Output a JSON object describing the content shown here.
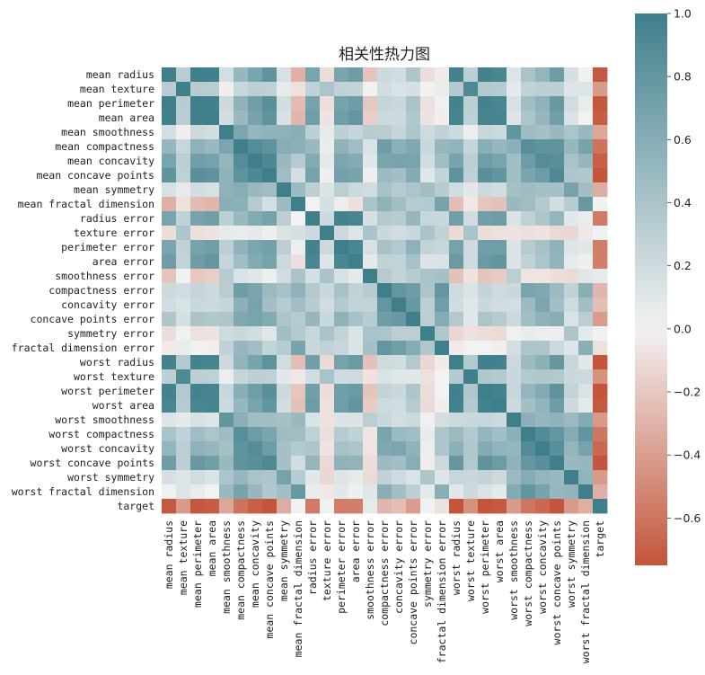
{
  "chart_data": {
    "type": "heatmap",
    "title": "相关性热力图",
    "xlabel": "",
    "ylabel": "",
    "colorbar": {
      "range": [
        -0.75,
        1.0
      ],
      "ticks": [
        1.0,
        0.8,
        0.6,
        0.4,
        0.2,
        0.0,
        -0.2,
        -0.4,
        -0.6
      ],
      "tick_labels": [
        "1.0",
        "0.8",
        "0.6",
        "0.4",
        "0.2",
        "0.0",
        "−0.2",
        "−0.4",
        "−0.6"
      ],
      "colormap": "diverging",
      "low_color": "#c4553a",
      "mid_color": "#f2f2f2",
      "high_color": "#3f7f8c"
    },
    "labels": [
      "mean radius",
      "mean texture",
      "mean perimeter",
      "mean area",
      "mean smoothness",
      "mean compactness",
      "mean concavity",
      "mean concave points",
      "mean symmetry",
      "mean fractal dimension",
      "radius error",
      "texture error",
      "perimeter error",
      "area error",
      "smoothness error",
      "compactness error",
      "concavity error",
      "concave points error",
      "symmetry error",
      "fractal dimension error",
      "worst radius",
      "worst texture",
      "worst perimeter",
      "worst area",
      "worst smoothness",
      "worst compactness",
      "worst concavity",
      "worst concave points",
      "worst symmetry",
      "worst fractal dimension",
      "target"
    ],
    "matrix": [
      [
        1.0,
        0.32,
        1.0,
        0.99,
        0.17,
        0.51,
        0.68,
        0.82,
        0.15,
        -0.31,
        0.68,
        -0.1,
        0.67,
        0.74,
        -0.22,
        0.21,
        0.19,
        0.38,
        -0.1,
        -0.04,
        0.97,
        0.3,
        0.97,
        0.94,
        0.12,
        0.41,
        0.53,
        0.74,
        0.16,
        0.01,
        -0.73
      ],
      [
        0.32,
        1.0,
        0.33,
        0.32,
        -0.02,
        0.24,
        0.3,
        0.29,
        0.07,
        -0.08,
        0.28,
        0.39,
        0.28,
        0.26,
        0.01,
        0.19,
        0.14,
        0.16,
        0.01,
        0.05,
        0.35,
        0.91,
        0.36,
        0.34,
        0.08,
        0.28,
        0.3,
        0.3,
        0.11,
        0.12,
        -0.42
      ],
      [
        1.0,
        0.33,
        1.0,
        0.99,
        0.21,
        0.56,
        0.72,
        0.85,
        0.18,
        -0.26,
        0.69,
        -0.09,
        0.69,
        0.74,
        -0.2,
        0.25,
        0.23,
        0.41,
        -0.08,
        -0.01,
        0.97,
        0.3,
        0.97,
        0.94,
        0.15,
        0.46,
        0.56,
        0.77,
        0.19,
        0.05,
        -0.74
      ],
      [
        0.99,
        0.32,
        0.99,
        1.0,
        0.18,
        0.5,
        0.69,
        0.82,
        0.15,
        -0.28,
        0.73,
        -0.07,
        0.73,
        0.8,
        -0.17,
        0.21,
        0.21,
        0.37,
        -0.07,
        -0.02,
        0.96,
        0.29,
        0.96,
        0.96,
        0.12,
        0.39,
        0.51,
        0.72,
        0.14,
        0.0,
        -0.71
      ],
      [
        0.17,
        -0.02,
        0.21,
        0.18,
        1.0,
        0.66,
        0.52,
        0.55,
        0.56,
        0.58,
        0.3,
        0.07,
        0.3,
        0.25,
        0.33,
        0.32,
        0.25,
        0.38,
        0.2,
        0.28,
        0.21,
        0.04,
        0.24,
        0.21,
        0.81,
        0.47,
        0.43,
        0.5,
        0.39,
        0.5,
        -0.36
      ],
      [
        0.51,
        0.24,
        0.56,
        0.5,
        0.66,
        1.0,
        0.88,
        0.83,
        0.6,
        0.57,
        0.5,
        0.05,
        0.55,
        0.46,
        0.14,
        0.74,
        0.57,
        0.64,
        0.23,
        0.51,
        0.54,
        0.25,
        0.59,
        0.51,
        0.57,
        0.87,
        0.82,
        0.82,
        0.51,
        0.69,
        -0.6
      ],
      [
        0.68,
        0.3,
        0.72,
        0.69,
        0.52,
        0.88,
        1.0,
        0.92,
        0.5,
        0.34,
        0.63,
        0.08,
        0.66,
        0.62,
        0.1,
        0.67,
        0.69,
        0.68,
        0.18,
        0.45,
        0.69,
        0.3,
        0.73,
        0.68,
        0.45,
        0.75,
        0.88,
        0.86,
        0.41,
        0.51,
        -0.7
      ],
      [
        0.82,
        0.29,
        0.85,
        0.82,
        0.55,
        0.83,
        0.92,
        1.0,
        0.46,
        0.17,
        0.7,
        0.02,
        0.71,
        0.69,
        0.03,
        0.49,
        0.44,
        0.62,
        0.1,
        0.26,
        0.83,
        0.29,
        0.86,
        0.81,
        0.45,
        0.67,
        0.75,
        0.91,
        0.38,
        0.37,
        -0.78
      ],
      [
        0.15,
        0.07,
        0.18,
        0.15,
        0.56,
        0.6,
        0.5,
        0.46,
        1.0,
        0.48,
        0.3,
        0.13,
        0.31,
        0.22,
        0.19,
        0.42,
        0.34,
        0.39,
        0.45,
        0.33,
        0.19,
        0.09,
        0.22,
        0.18,
        0.43,
        0.47,
        0.43,
        0.43,
        0.7,
        0.44,
        -0.33
      ],
      [
        -0.31,
        -0.08,
        -0.26,
        -0.28,
        0.58,
        0.57,
        0.34,
        0.17,
        0.48,
        1.0,
        0.0,
        0.16,
        0.04,
        -0.09,
        0.4,
        0.56,
        0.45,
        0.34,
        0.35,
        0.69,
        -0.25,
        -0.05,
        -0.21,
        -0.23,
        0.5,
        0.46,
        0.35,
        0.18,
        0.33,
        0.77,
        0.01
      ],
      [
        0.68,
        0.28,
        0.69,
        0.73,
        0.3,
        0.5,
        0.63,
        0.7,
        0.3,
        0.0,
        1.0,
        0.21,
        0.97,
        0.95,
        0.16,
        0.36,
        0.33,
        0.51,
        0.24,
        0.23,
        0.72,
        0.19,
        0.72,
        0.75,
        0.14,
        0.29,
        0.38,
        0.53,
        0.09,
        0.05,
        -0.57
      ],
      [
        -0.1,
        0.39,
        -0.09,
        -0.07,
        0.07,
        0.05,
        0.08,
        0.02,
        0.13,
        0.16,
        0.21,
        1.0,
        0.22,
        0.11,
        0.4,
        0.23,
        0.19,
        0.23,
        0.41,
        0.28,
        -0.11,
        0.41,
        -0.1,
        -0.08,
        -0.07,
        -0.09,
        -0.07,
        -0.12,
        -0.13,
        -0.05,
        0.01
      ],
      [
        0.67,
        0.28,
        0.69,
        0.73,
        0.3,
        0.55,
        0.66,
        0.71,
        0.31,
        0.04,
        0.97,
        0.22,
        1.0,
        0.94,
        0.15,
        0.42,
        0.36,
        0.56,
        0.27,
        0.24,
        0.7,
        0.2,
        0.72,
        0.73,
        0.13,
        0.34,
        0.42,
        0.55,
        0.11,
        0.09,
        -0.56
      ],
      [
        0.74,
        0.26,
        0.74,
        0.8,
        0.25,
        0.46,
        0.62,
        0.69,
        0.22,
        -0.09,
        0.95,
        0.11,
        0.94,
        1.0,
        0.08,
        0.28,
        0.27,
        0.42,
        0.13,
        0.13,
        0.76,
        0.2,
        0.76,
        0.81,
        0.13,
        0.28,
        0.39,
        0.54,
        0.07,
        0.02,
        -0.55
      ],
      [
        -0.22,
        0.01,
        -0.2,
        -0.17,
        0.33,
        0.14,
        0.1,
        0.03,
        0.19,
        0.4,
        0.16,
        0.4,
        0.15,
        0.08,
        1.0,
        0.34,
        0.27,
        0.33,
        0.41,
        0.43,
        -0.23,
        -0.07,
        -0.22,
        -0.18,
        0.31,
        -0.06,
        -0.06,
        -0.1,
        -0.11,
        0.1,
        0.07
      ],
      [
        0.21,
        0.19,
        0.25,
        0.21,
        0.32,
        0.74,
        0.67,
        0.49,
        0.42,
        0.56,
        0.36,
        0.23,
        0.42,
        0.28,
        0.34,
        1.0,
        0.8,
        0.74,
        0.39,
        0.8,
        0.2,
        0.14,
        0.26,
        0.2,
        0.23,
        0.68,
        0.64,
        0.48,
        0.28,
        0.59,
        -0.29
      ],
      [
        0.19,
        0.14,
        0.23,
        0.21,
        0.25,
        0.57,
        0.69,
        0.44,
        0.34,
        0.45,
        0.33,
        0.19,
        0.36,
        0.27,
        0.27,
        0.8,
        1.0,
        0.77,
        0.31,
        0.73,
        0.19,
        0.1,
        0.23,
        0.19,
        0.17,
        0.48,
        0.66,
        0.44,
        0.2,
        0.44,
        -0.25
      ],
      [
        0.38,
        0.16,
        0.41,
        0.37,
        0.38,
        0.64,
        0.68,
        0.62,
        0.39,
        0.34,
        0.51,
        0.23,
        0.56,
        0.42,
        0.33,
        0.74,
        0.77,
        1.0,
        0.31,
        0.61,
        0.36,
        0.09,
        0.39,
        0.34,
        0.22,
        0.45,
        0.55,
        0.6,
        0.14,
        0.31,
        -0.41
      ],
      [
        -0.1,
        0.01,
        -0.08,
        -0.07,
        0.2,
        0.23,
        0.18,
        0.1,
        0.45,
        0.35,
        0.24,
        0.41,
        0.27,
        0.13,
        0.41,
        0.39,
        0.31,
        0.31,
        1.0,
        0.37,
        -0.13,
        -0.08,
        -0.1,
        -0.11,
        -0.01,
        0.06,
        0.04,
        -0.03,
        0.39,
        0.08,
        0.01
      ],
      [
        -0.04,
        0.05,
        -0.01,
        -0.02,
        0.28,
        0.51,
        0.45,
        0.26,
        0.33,
        0.69,
        0.23,
        0.28,
        0.24,
        0.13,
        0.43,
        0.8,
        0.73,
        0.61,
        0.37,
        1.0,
        -0.04,
        -0.0,
        -0.0,
        -0.02,
        0.17,
        0.39,
        0.38,
        0.22,
        0.11,
        0.59,
        -0.08
      ],
      [
        0.97,
        0.35,
        0.97,
        0.96,
        0.21,
        0.54,
        0.69,
        0.83,
        0.19,
        -0.25,
        0.72,
        -0.11,
        0.7,
        0.76,
        -0.23,
        0.2,
        0.19,
        0.36,
        -0.13,
        -0.04,
        1.0,
        0.36,
        0.99,
        0.98,
        0.22,
        0.48,
        0.57,
        0.79,
        0.24,
        0.09,
        -0.78
      ],
      [
        0.3,
        0.91,
        0.3,
        0.29,
        0.04,
        0.25,
        0.3,
        0.29,
        0.09,
        -0.05,
        0.19,
        0.41,
        0.2,
        0.2,
        -0.07,
        0.14,
        0.1,
        0.09,
        -0.08,
        -0.0,
        0.36,
        1.0,
        0.37,
        0.35,
        0.23,
        0.36,
        0.37,
        0.36,
        0.23,
        0.22,
        -0.46
      ],
      [
        0.97,
        0.36,
        0.97,
        0.96,
        0.24,
        0.59,
        0.73,
        0.86,
        0.22,
        -0.21,
        0.72,
        -0.1,
        0.72,
        0.76,
        -0.22,
        0.26,
        0.23,
        0.39,
        -0.1,
        -0.0,
        0.99,
        0.37,
        1.0,
        0.98,
        0.24,
        0.53,
        0.62,
        0.82,
        0.27,
        0.14,
        -0.78
      ],
      [
        0.94,
        0.34,
        0.94,
        0.96,
        0.21,
        0.51,
        0.68,
        0.81,
        0.18,
        -0.23,
        0.75,
        -0.08,
        0.73,
        0.81,
        -0.18,
        0.2,
        0.19,
        0.34,
        -0.11,
        -0.02,
        0.98,
        0.35,
        0.98,
        1.0,
        0.21,
        0.44,
        0.54,
        0.75,
        0.21,
        0.08,
        -0.73
      ],
      [
        0.12,
        0.08,
        0.15,
        0.12,
        0.81,
        0.57,
        0.45,
        0.45,
        0.43,
        0.5,
        0.14,
        -0.07,
        0.13,
        0.13,
        0.31,
        0.23,
        0.17,
        0.22,
        -0.01,
        0.17,
        0.22,
        0.23,
        0.24,
        0.21,
        1.0,
        0.57,
        0.52,
        0.55,
        0.49,
        0.62,
        -0.42
      ],
      [
        0.41,
        0.28,
        0.46,
        0.39,
        0.47,
        0.87,
        0.75,
        0.67,
        0.47,
        0.46,
        0.29,
        -0.09,
        0.34,
        0.28,
        -0.06,
        0.68,
        0.48,
        0.45,
        0.06,
        0.39,
        0.48,
        0.36,
        0.53,
        0.44,
        0.57,
        1.0,
        0.89,
        0.8,
        0.61,
        0.81,
        -0.59
      ],
      [
        0.53,
        0.3,
        0.56,
        0.51,
        0.43,
        0.82,
        0.88,
        0.75,
        0.43,
        0.35,
        0.38,
        -0.07,
        0.42,
        0.39,
        -0.06,
        0.64,
        0.66,
        0.55,
        0.04,
        0.38,
        0.57,
        0.37,
        0.62,
        0.54,
        0.52,
        0.89,
        1.0,
        0.86,
        0.53,
        0.69,
        -0.66
      ],
      [
        0.74,
        0.3,
        0.77,
        0.72,
        0.5,
        0.82,
        0.86,
        0.91,
        0.43,
        0.18,
        0.53,
        -0.12,
        0.55,
        0.54,
        -0.1,
        0.48,
        0.44,
        0.6,
        -0.03,
        0.22,
        0.79,
        0.36,
        0.82,
        0.75,
        0.55,
        0.8,
        0.86,
        1.0,
        0.5,
        0.51,
        -0.79
      ],
      [
        0.16,
        0.11,
        0.19,
        0.14,
        0.39,
        0.51,
        0.41,
        0.38,
        0.7,
        0.33,
        0.09,
        -0.13,
        0.11,
        0.07,
        -0.11,
        0.28,
        0.2,
        0.14,
        0.39,
        0.11,
        0.24,
        0.23,
        0.27,
        0.21,
        0.49,
        0.61,
        0.53,
        0.5,
        1.0,
        0.54,
        -0.42
      ],
      [
        0.01,
        0.12,
        0.05,
        0.0,
        0.5,
        0.69,
        0.51,
        0.37,
        0.44,
        0.77,
        0.05,
        -0.05,
        0.09,
        0.02,
        0.1,
        0.59,
        0.44,
        0.31,
        0.08,
        0.59,
        0.09,
        0.22,
        0.14,
        0.08,
        0.62,
        0.81,
        0.69,
        0.51,
        0.54,
        1.0,
        -0.32
      ],
      [
        -0.73,
        -0.42,
        -0.74,
        -0.71,
        -0.36,
        -0.6,
        -0.7,
        -0.78,
        -0.33,
        0.01,
        -0.57,
        0.01,
        -0.56,
        -0.55,
        0.07,
        -0.29,
        -0.25,
        -0.41,
        0.01,
        -0.08,
        -0.78,
        -0.46,
        -0.78,
        -0.73,
        -0.42,
        -0.59,
        -0.66,
        -0.79,
        -0.42,
        -0.32,
        1.0
      ]
    ]
  }
}
